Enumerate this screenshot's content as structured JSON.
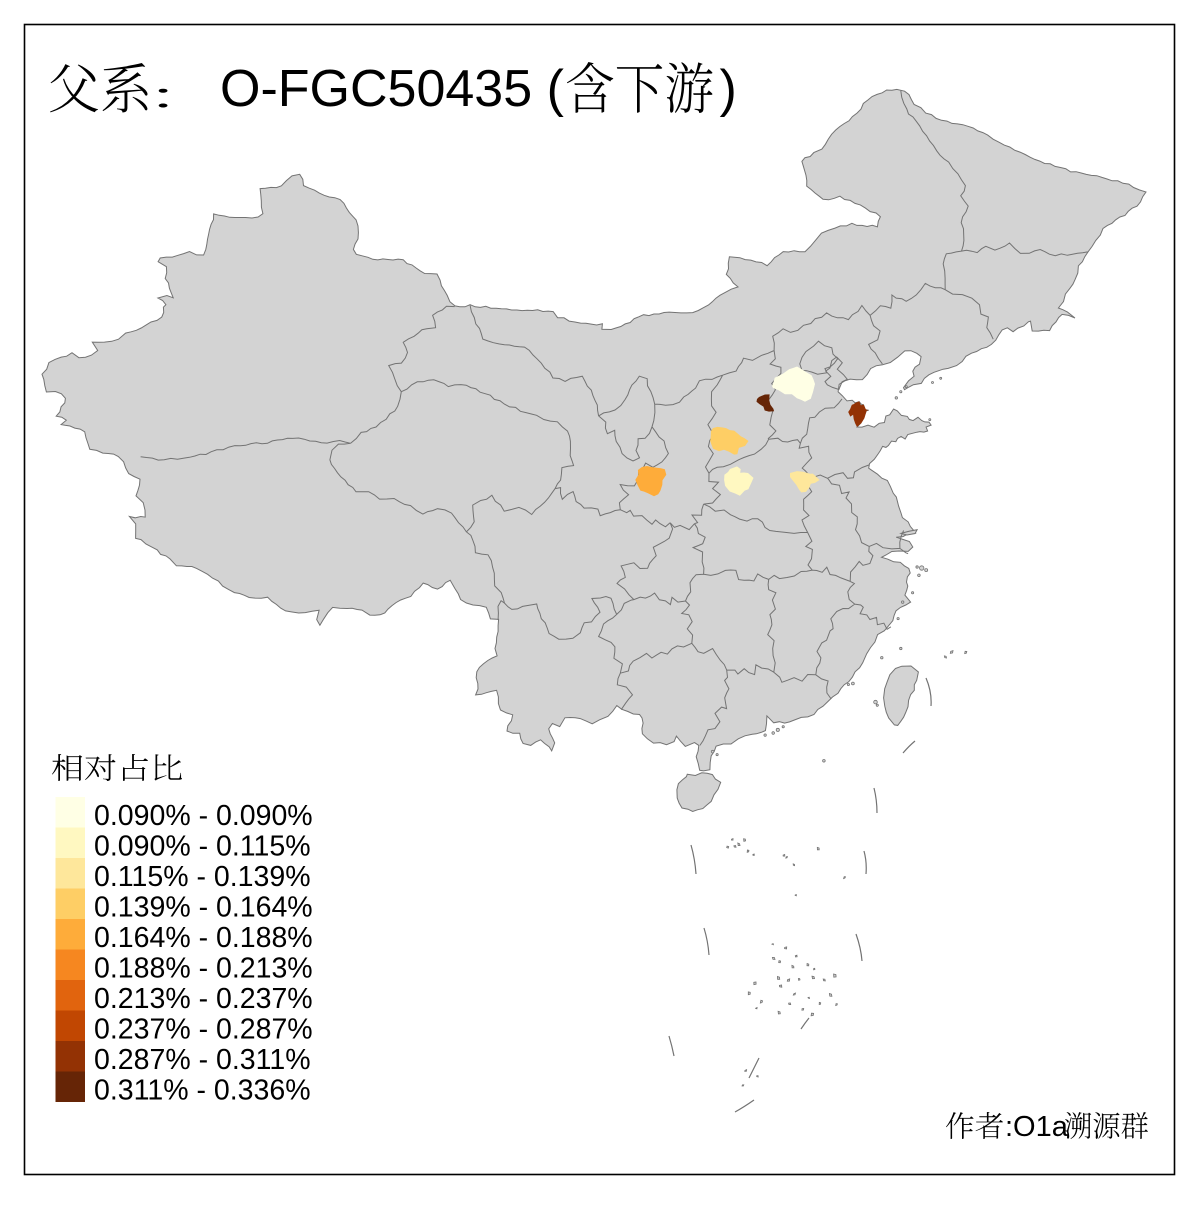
{
  "title": {
    "prefix_cjk": "父系：",
    "latin": "O-FGC50435 (",
    "suffix_cjk": "含下游",
    "close_paren": ")",
    "full_text": "父系： O-FGC50435 (含下游)"
  },
  "legend": {
    "title": "相对占比",
    "entries": [
      {
        "label": "0.090% - 0.090%",
        "color": "#FFFFE5"
      },
      {
        "label": "0.090% - 0.115%",
        "color": "#FFF8C1"
      },
      {
        "label": "0.115% - 0.139%",
        "color": "#FEE79B"
      },
      {
        "label": "0.139% - 0.164%",
        "color": "#FECE65"
      },
      {
        "label": "0.164% - 0.188%",
        "color": "#FEAC3A"
      },
      {
        "label": "0.188% - 0.213%",
        "color": "#F68720"
      },
      {
        "label": "0.213% - 0.237%",
        "color": "#E1640E"
      },
      {
        "label": "0.237% - 0.287%",
        "color": "#C14702"
      },
      {
        "label": "0.287% - 0.311%",
        "color": "#933204"
      },
      {
        "label": "0.311% - 0.336%",
        "color": "#662506"
      }
    ]
  },
  "attribution": {
    "cjk_prefix": "作者",
    "colon_latin": ":O1a",
    "cjk_suffix": "溯源群",
    "full_text": "作者:O1a溯源群"
  },
  "map": {
    "base_fill": "#D3D3D3",
    "boundary_color": "#737373",
    "background": "#FFFFFF",
    "frame_color": "#000000",
    "highlighted_regions": [
      {
        "id": "region-1",
        "color": "#FFFFE5",
        "value_range": "0.090% - 0.090%"
      },
      {
        "id": "region-2",
        "color": "#662506",
        "value_range": "0.311% - 0.336%"
      },
      {
        "id": "region-3",
        "color": "#933204",
        "value_range": "0.287% - 0.311%"
      },
      {
        "id": "region-4",
        "color": "#FECE65",
        "value_range": "0.139% - 0.164%"
      },
      {
        "id": "region-5",
        "color": "#FEAC3A",
        "value_range": "0.164% - 0.188%"
      },
      {
        "id": "region-6",
        "color": "#FFF8C1",
        "value_range": "0.090% - 0.115%"
      },
      {
        "id": "region-7",
        "color": "#FEE79B",
        "value_range": "0.115% - 0.139%"
      }
    ]
  }
}
